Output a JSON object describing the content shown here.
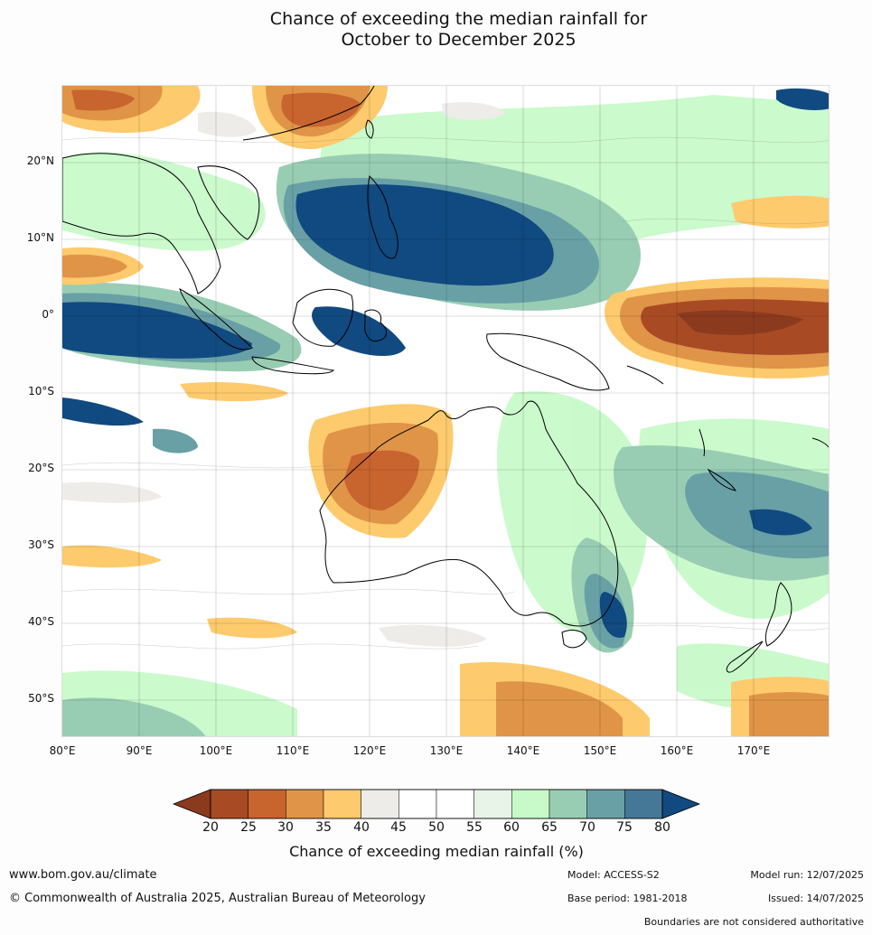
{
  "title_line1": "Chance of exceeding the median rainfall for",
  "title_line2": "October to December 2025",
  "map": {
    "lat_ticks": [
      "20°N",
      "10°N",
      "0°",
      "10°S",
      "20°S",
      "30°S",
      "40°S",
      "50°S"
    ],
    "lon_ticks": [
      "80°E",
      "90°E",
      "100°E",
      "110°E",
      "120°E",
      "130°E",
      "140°E",
      "150°E",
      "160°E",
      "170°E"
    ],
    "extent": {
      "lon_min": 80,
      "lon_max": 180,
      "lat_min": -55,
      "lat_max": 30
    }
  },
  "colorbar": {
    "ticks": [
      "20",
      "25",
      "30",
      "35",
      "40",
      "45",
      "50",
      "55",
      "60",
      "65",
      "70",
      "75",
      "80"
    ],
    "colors": [
      "#8b3a1e",
      "#a84b25",
      "#c8642e",
      "#df9447",
      "#fdca6d",
      "#eeece8",
      "#ffffff",
      "#ffffff",
      "#e9f4e8",
      "#c8fac9",
      "#98cdb4",
      "#68a0a6",
      "#457896",
      "#114a80"
    ],
    "label": "Chance of exceeding median rainfall (%)"
  },
  "footer": {
    "website": "www.bom.gov.au/climate",
    "copyright": "© Commonwealth of Australia 2025, Australian Bureau of Meteorology",
    "model": "Model: ACCESS-S2",
    "model_run": "Model run: 12/07/2025",
    "base_period": "Base period: 1981-2018",
    "issued": "Issued: 14/07/2025",
    "disclaimer": "Boundaries are not considered authoritative"
  }
}
